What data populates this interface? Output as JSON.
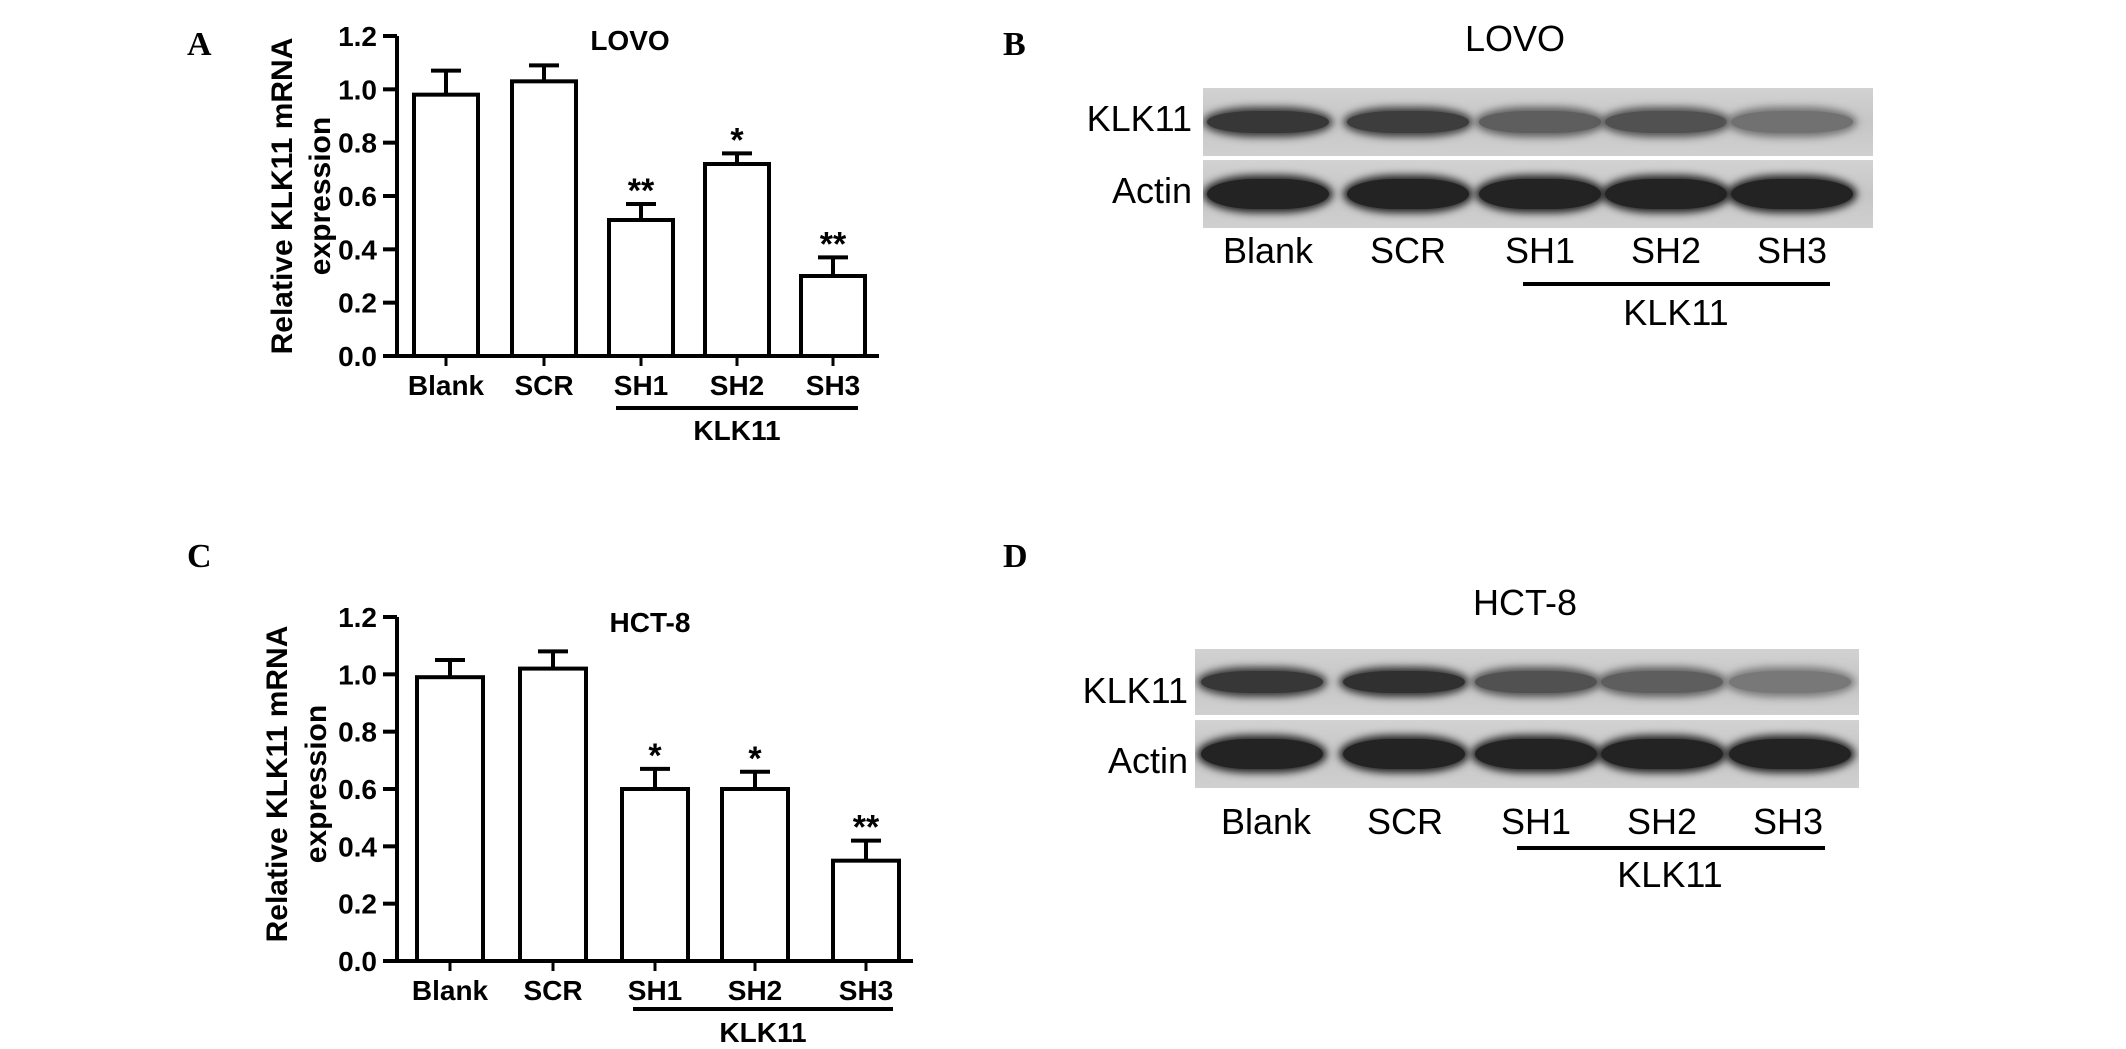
{
  "panels": {
    "a": "A",
    "b": "B",
    "c": "C",
    "d": "D"
  },
  "chart_data": [
    {
      "type": "bar",
      "title": "LOVO",
      "ylabel": "Relative KLK11 mRNA expression",
      "ylabel_lines": [
        "Relative KLK11 mRNA",
        "expression"
      ],
      "categories": [
        "Blank",
        "SCR",
        "SH1",
        "SH2",
        "SH3"
      ],
      "group_label": "KLK11",
      "values": [
        0.98,
        1.03,
        0.51,
        0.72,
        0.3
      ],
      "errors": [
        0.09,
        0.06,
        0.06,
        0.04,
        0.07
      ],
      "significance": [
        "",
        "",
        "**",
        "*",
        "**"
      ],
      "ylim": [
        0,
        1.2
      ],
      "yticks": [
        "0.0",
        "0.2",
        "0.4",
        "0.6",
        "0.8",
        "1.0",
        "1.2"
      ]
    },
    {
      "type": "bar",
      "title": "HCT-8",
      "ylabel": "Relative KLK11 mRNA expression",
      "ylabel_lines": [
        "Relative KLK11 mRNA",
        "expression"
      ],
      "categories": [
        "Blank",
        "SCR",
        "SH1",
        "SH2",
        "SH3"
      ],
      "group_label": "KLK11",
      "values": [
        0.99,
        1.02,
        0.6,
        0.6,
        0.35
      ],
      "errors": [
        0.06,
        0.06,
        0.07,
        0.06,
        0.07
      ],
      "significance": [
        "",
        "",
        "*",
        "*",
        "**"
      ],
      "ylim": [
        0,
        1.2
      ],
      "yticks": [
        "0.0",
        "0.2",
        "0.4",
        "0.6",
        "0.8",
        "1.0",
        "1.2"
      ]
    }
  ],
  "blots": [
    {
      "title": "LOVO",
      "rows": [
        {
          "label": "KLK11",
          "intensities": [
            0.85,
            0.8,
            0.55,
            0.65,
            0.4
          ]
        },
        {
          "label": "Actin",
          "intensities": [
            1.0,
            1.0,
            1.0,
            1.0,
            1.0
          ]
        }
      ],
      "lanes": [
        "Blank",
        "SCR",
        "SH1",
        "SH2",
        "SH3"
      ],
      "group_label": "KLK11"
    },
    {
      "title": "HCT-8",
      "rows": [
        {
          "label": "KLK11",
          "intensities": [
            0.85,
            0.9,
            0.65,
            0.55,
            0.35
          ]
        },
        {
          "label": "Actin",
          "intensities": [
            1.0,
            1.0,
            1.0,
            1.0,
            1.0
          ]
        }
      ],
      "lanes": [
        "Blank",
        "SCR",
        "SH1",
        "SH2",
        "SH3"
      ],
      "group_label": "KLK11"
    }
  ]
}
